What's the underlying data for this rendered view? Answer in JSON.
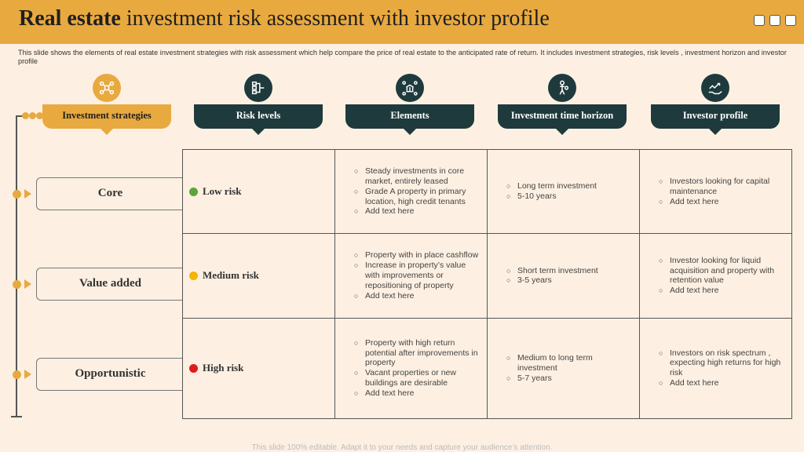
{
  "title": {
    "bold": "Real estate",
    "rest": " investment risk assessment with investor profile"
  },
  "subtitle": "This slide shows the elements of real estate investment strategies with risk assessment which help compare the price of real estate to the anticipated rate of return. It includes investment strategies, risk levels , investment horizon and investor profile",
  "headers": {
    "strategies": "Investment strategies",
    "risk": "Risk levels",
    "elements": "Elements",
    "horizon": "Investment time horizon",
    "profile": "Investor profile"
  },
  "icons": {
    "strategies": "network-icon",
    "risk": "flow-icon",
    "elements": "bank-network-icon",
    "horizon": "investor-person-icon",
    "profile": "growth-hand-icon"
  },
  "colors": {
    "accent": "#e8a93f",
    "dark": "#1e3a3d",
    "background": "#fdf0e2",
    "low": "#5aa63b",
    "medium": "#f5b400",
    "high": "#e01b1b"
  },
  "rows": [
    {
      "label": "Core",
      "risk": "Low risk",
      "elements": [
        "Steady investments in core market, entirely leased",
        "Grade A property in primary location, high credit tenants",
        "Add text here"
      ],
      "horizon": [
        "Long term investment",
        "5-10 years"
      ],
      "profile": [
        "Investors looking for capital maintenance",
        "Add text here"
      ]
    },
    {
      "label": "Value added",
      "risk": "Medium risk",
      "elements": [
        "Property with in place cashflow",
        "Increase in property’s value with improvements or repositioning of property",
        "Add text here"
      ],
      "horizon": [
        "Short term investment",
        "3-5 years"
      ],
      "profile": [
        "Investor looking for liquid acquisition and property with retention value",
        " Add text here"
      ]
    },
    {
      "label": "Opportunistic",
      "risk": "High risk",
      "elements": [
        "Property with high return potential after improvements in property",
        "Vacant properties or new buildings are desirable",
        "Add text here"
      ],
      "horizon": [
        "Medium to long term investment",
        "5-7 years"
      ],
      "profile": [
        "Investors on risk spectrum , expecting high returns for high risk",
        "Add text here"
      ]
    }
  ],
  "footer": "This slide 100% editable. Adapt it to your needs  and capture your audience’s attention."
}
